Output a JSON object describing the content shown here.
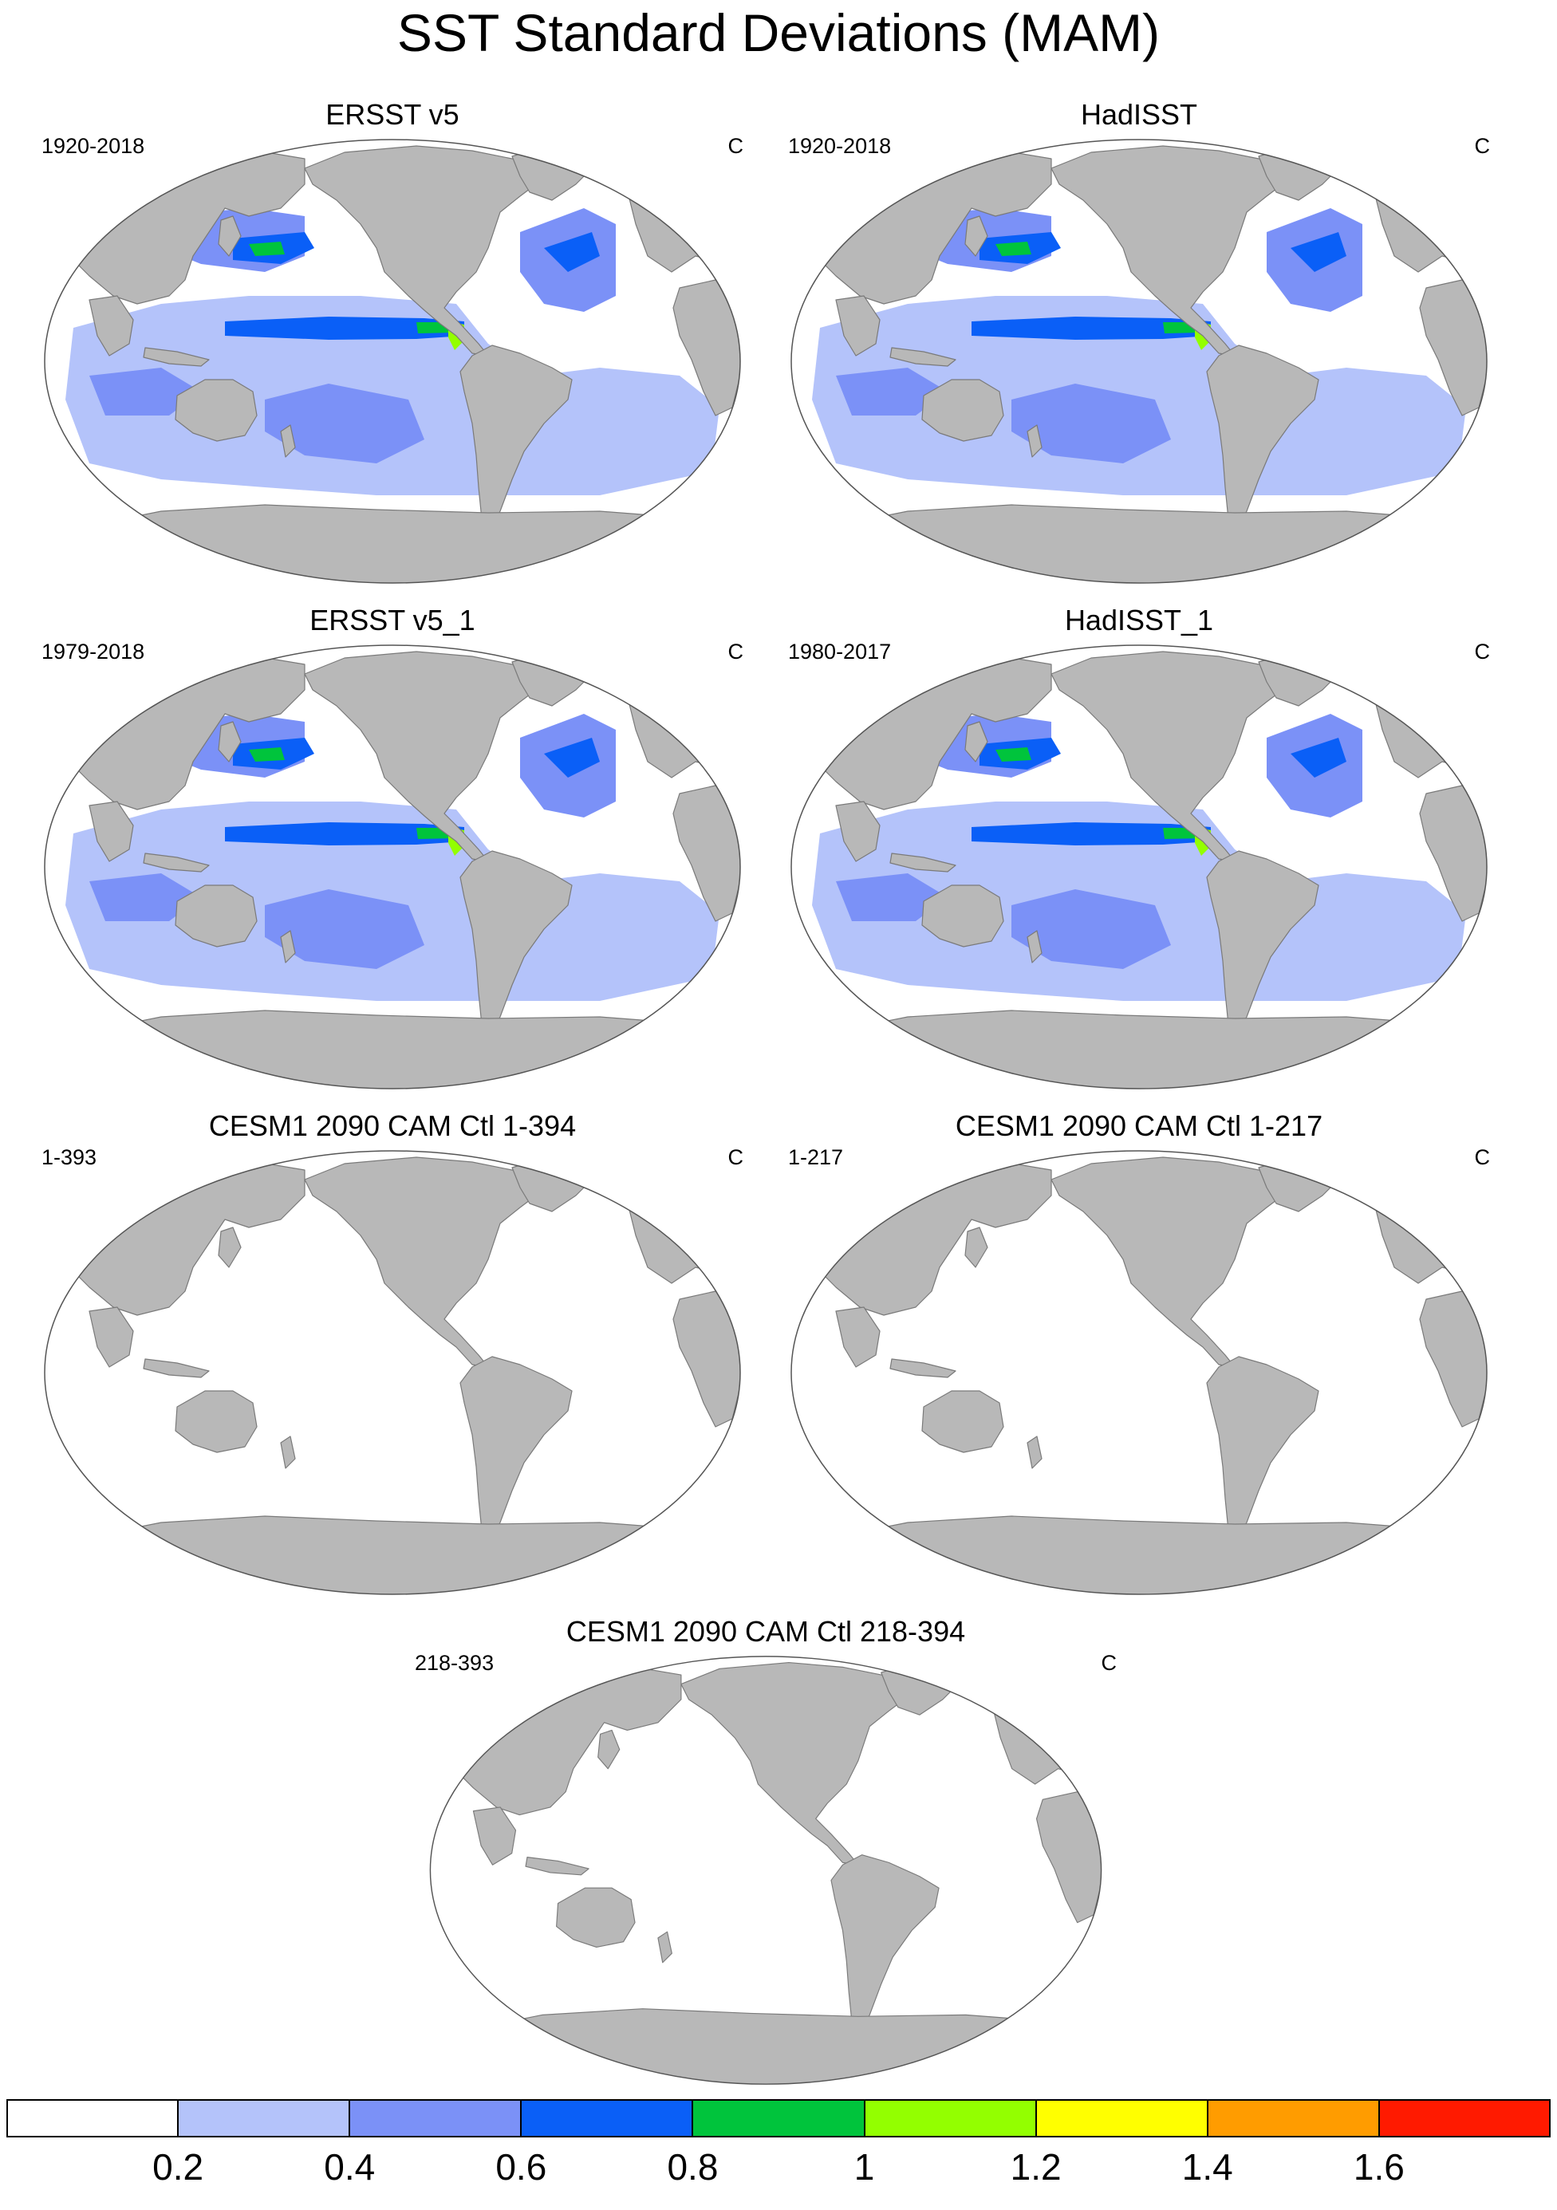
{
  "figure": {
    "title": "SST Standard Deviations (MAM)"
  },
  "panels": [
    {
      "id": "ersst",
      "title": "ERSST v5",
      "period": "1920-2018",
      "units": "C",
      "pattern": "obs"
    },
    {
      "id": "hadisst",
      "title": "HadISST",
      "period": "1920-2018",
      "units": "C",
      "pattern": "obs"
    },
    {
      "id": "ersst-1",
      "title": "ERSST v5_1",
      "period": "1979-2018",
      "units": "C",
      "pattern": "obs"
    },
    {
      "id": "hadisst-1",
      "title": "HadISST_1",
      "period": "1980-2017",
      "units": "C",
      "pattern": "obs"
    },
    {
      "id": "cesm-1-394",
      "title": "CESM1 2090 CAM Ctl 1-394",
      "period": "1-393",
      "units": "C",
      "pattern": "empty"
    },
    {
      "id": "cesm-1-217",
      "title": "CESM1 2090 CAM Ctl 1-217",
      "period": "1-217",
      "units": "C",
      "pattern": "empty"
    },
    {
      "id": "cesm-218-394",
      "title": "CESM1 2090 CAM Ctl 218-394",
      "period": "218-393",
      "units": "C",
      "pattern": "empty"
    }
  ],
  "colorbar": {
    "colors": [
      "#ffffff",
      "#b4c3fa",
      "#7b91f7",
      "#0a5ff7",
      "#00c43c",
      "#93ff00",
      "#ffff00",
      "#ff9c00",
      "#ff1a00"
    ],
    "labels": [
      "0.2",
      "0.4",
      "0.6",
      "0.8",
      "1",
      "1.2",
      "1.4",
      "1.6"
    ]
  },
  "colors": {
    "land": "#b8b8b8",
    "coast": "#7a7a7a",
    "map_outline": "#555555"
  }
}
